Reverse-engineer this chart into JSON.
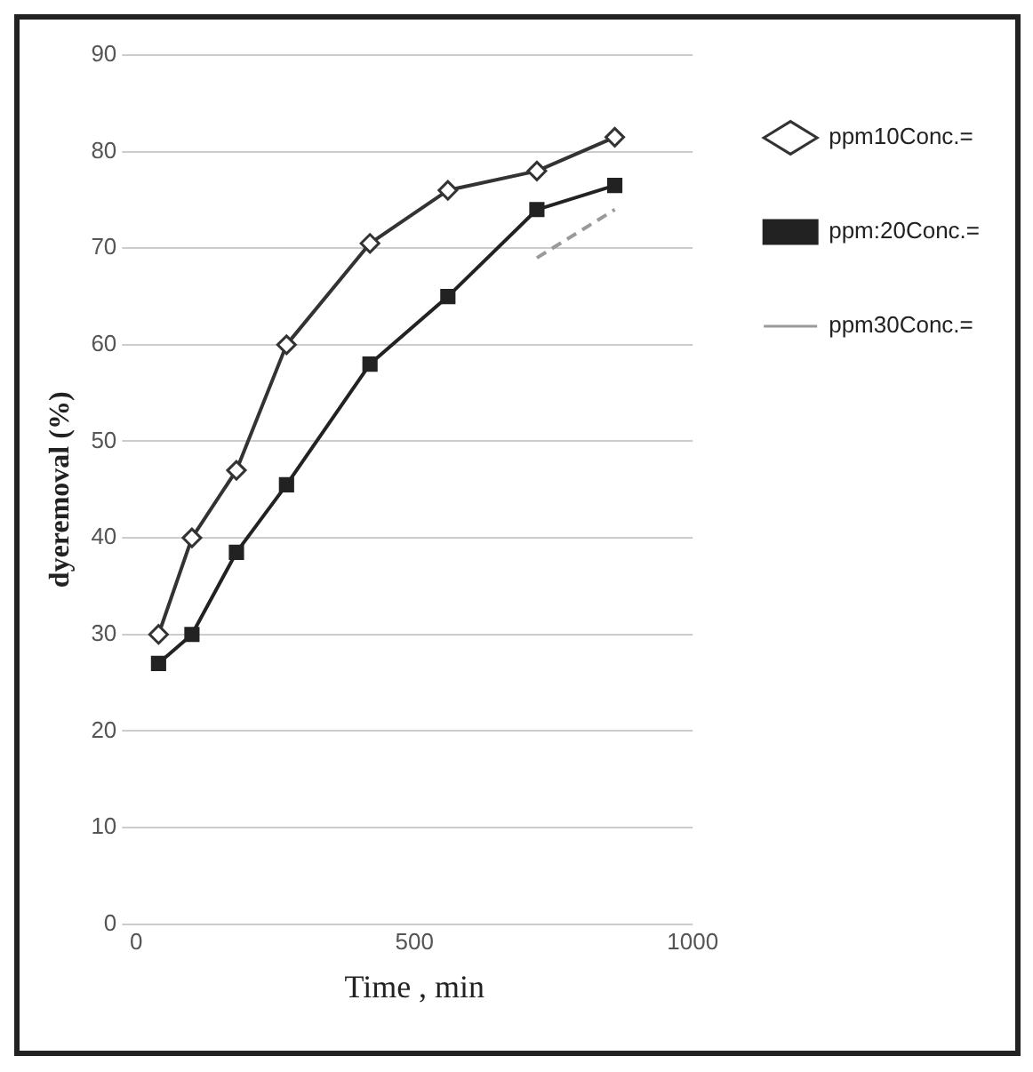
{
  "chart_data": {
    "type": "line",
    "xlabel": "Time , min",
    "ylabel": "dyeremoval (%)",
    "x": [
      40,
      100,
      180,
      270,
      420,
      560,
      720,
      860
    ],
    "series": [
      {
        "name": "ppm10Conc.=",
        "color": "#333333",
        "marker": "diamond",
        "values": [
          30,
          40,
          47,
          60,
          70.5,
          76,
          78,
          81.5
        ]
      },
      {
        "name": "ppm:20Conc.=",
        "color": "#222222",
        "marker": "square",
        "values": [
          27,
          30,
          38.5,
          45.5,
          58,
          65,
          74,
          76.5
        ]
      },
      {
        "name": "ppm30Conc.=",
        "color": "#9a9a9a",
        "marker": "none",
        "line_style": "dashed",
        "values": [
          null,
          null,
          null,
          null,
          null,
          null,
          69,
          74
        ]
      }
    ],
    "xlim": [
      0,
      1000
    ],
    "xticks": [
      0,
      500,
      1000
    ],
    "ylim": [
      0,
      90
    ],
    "yticks": [
      0,
      10,
      20,
      30,
      40,
      50,
      60,
      70,
      80,
      90
    ],
    "grid": "y",
    "legend": "right"
  }
}
